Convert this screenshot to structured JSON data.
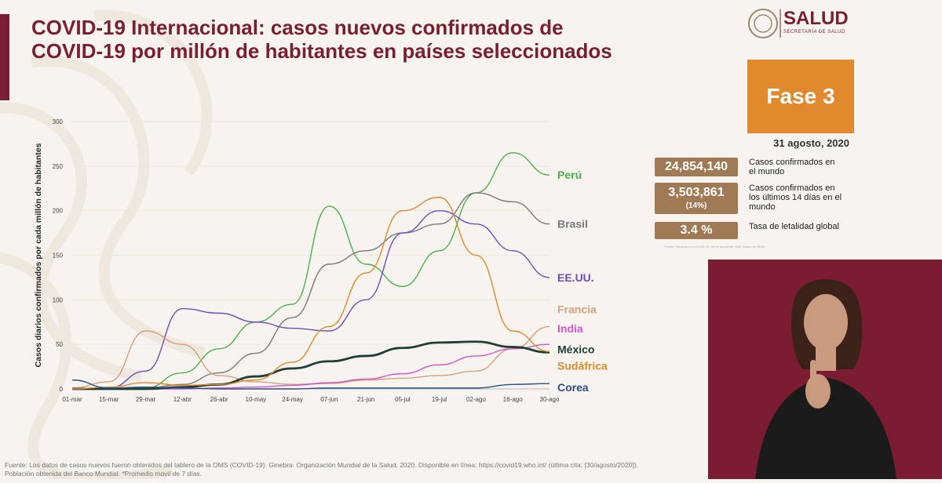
{
  "slide": {
    "title_line1": "COVID-19 Internacional: casos nuevos confirmados de",
    "title_line2": "COVID-19 por millón de habitantes en países seleccionados",
    "logo_text": "SALUD",
    "logo_sub": "SECRETARÍA DE SALUD",
    "phase": "Fase 3",
    "date": "31 agosto, 2020",
    "stats": [
      {
        "value": "24,854,140",
        "sub": "",
        "label": "Casos confirmados en el mundo"
      },
      {
        "value": "3,503,861",
        "sub": "(14%)",
        "label": "Casos confirmados en los últimos 14 días en el mundo"
      },
      {
        "value": "3.4 %",
        "sub": "",
        "label": "Tasa de letalidad global"
      }
    ],
    "stat_source": "Fuente: Situación por COVID-19, 30 de agosto de 2020 (Datos de OMS)",
    "footer_line1": "Fuente: Los datos  de casos nuevos fueron obtenidos del tablero de la OMS (COVID-19). Ginebra: Organización Mundial de la Salud, 2020. Disponible en línea: https://covid19.who.int/ (última cita: [30/agosto/2020]).",
    "footer_line2": "Población obtenida del Banco Mundial. *Promedio movil de 7 días."
  },
  "chart_data": {
    "type": "line",
    "title": "",
    "ylabel": "Casos diarios confirmados por cada millón de habitantes",
    "xlabel": "",
    "ylim": [
      0,
      300
    ],
    "yticks": [
      0,
      50,
      100,
      150,
      200,
      250,
      300
    ],
    "x": [
      "01-mar",
      "15-mar",
      "29-mar",
      "12-abr",
      "26-abr",
      "10-may",
      "24-may",
      "07-jun",
      "21-jun",
      "05-jul",
      "19-jul",
      "02-ago",
      "16-ago",
      "30-ago"
    ],
    "series": [
      {
        "name": "Perú",
        "color": "#4caf50",
        "width": 1.4,
        "values": [
          0,
          0,
          1,
          18,
          45,
          75,
          95,
          205,
          140,
          115,
          155,
          220,
          265,
          240
        ]
      },
      {
        "name": "Brasil",
        "color": "#7a7a7a",
        "width": 1.4,
        "values": [
          0,
          0,
          1,
          5,
          18,
          40,
          80,
          140,
          155,
          175,
          185,
          220,
          210,
          185
        ]
      },
      {
        "name": "EE.UU.",
        "color": "#6b4fbf",
        "width": 1.4,
        "values": [
          0,
          1,
          20,
          90,
          85,
          75,
          68,
          65,
          100,
          175,
          200,
          185,
          155,
          125
        ]
      },
      {
        "name": "Francia",
        "color": "#d2a080",
        "width": 1.4,
        "values": [
          1,
          8,
          65,
          50,
          15,
          8,
          5,
          6,
          10,
          12,
          15,
          20,
          45,
          70
        ]
      },
      {
        "name": "India",
        "color": "#d455c8",
        "width": 1.4,
        "values": [
          0,
          0,
          0,
          0,
          1,
          2,
          4,
          7,
          11,
          17,
          27,
          37,
          45,
          50
        ]
      },
      {
        "name": "México",
        "color": "#1f3f34",
        "width": 2.8,
        "values": [
          0,
          0,
          0,
          2,
          5,
          14,
          23,
          31,
          37,
          46,
          52,
          53,
          47,
          41
        ]
      },
      {
        "name": "Sudáfrica",
        "color": "#e18a2d",
        "width": 1.4,
        "values": [
          0,
          2,
          7,
          4,
          5,
          10,
          30,
          70,
          130,
          200,
          215,
          150,
          65,
          42
        ]
      },
      {
        "name": "Corea",
        "color": "#2c4f8a",
        "width": 1.4,
        "values": [
          10,
          1,
          2,
          1,
          0,
          0,
          0,
          1,
          1,
          1,
          1,
          1,
          5,
          6
        ]
      }
    ]
  }
}
